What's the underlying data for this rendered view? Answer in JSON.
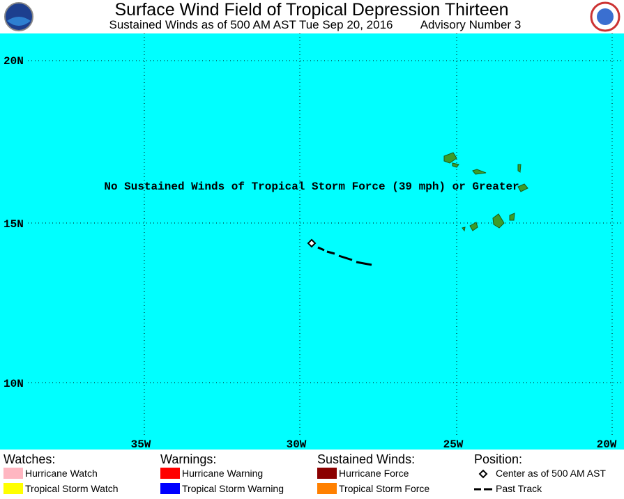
{
  "header": {
    "title": "Surface Wind Field of Tropical Depression Thirteen",
    "subtitle": "Sustained Winds as of 500 AM AST Tue Sep 20, 2016",
    "advisory": "Advisory Number 3"
  },
  "map": {
    "lat_labels": [
      "20N",
      "15N",
      "10N"
    ],
    "lon_labels": [
      "35W",
      "30W",
      "25W",
      "20W"
    ],
    "annotation": "No Sustained Winds of Tropical Storm Force (39 mph) or Greater"
  },
  "legend": {
    "watches": {
      "title": "Watches:",
      "items": [
        "Hurricane Watch",
        "Tropical Storm Watch"
      ]
    },
    "warnings": {
      "title": "Warnings:",
      "items": [
        "Hurricane Warning",
        "Tropical Storm Warning"
      ]
    },
    "winds": {
      "title": "Sustained Winds:",
      "items": [
        "Hurricane Force",
        "Tropical Storm Force"
      ]
    },
    "position": {
      "title": "Position:",
      "items": [
        "Center as of 500 AM AST",
        "Past Track"
      ]
    }
  }
}
